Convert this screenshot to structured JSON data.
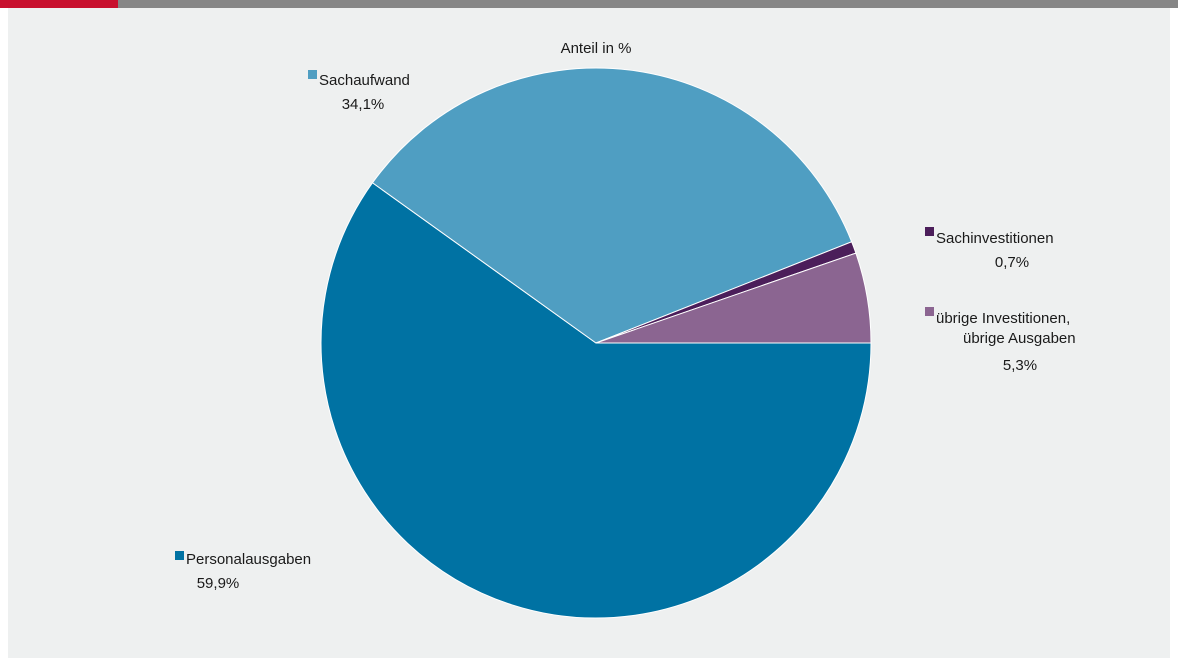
{
  "chart_data": {
    "type": "pie",
    "title": "Anteil in %",
    "slices": [
      {
        "name": "Personalausgaben",
        "value": 59.9,
        "value_label": "59,9%",
        "color": "#0072a3"
      },
      {
        "name": "Sachaufwand",
        "value": 34.1,
        "value_label": "34,1%",
        "color": "#4f9ec2"
      },
      {
        "name": "Sachinvestitionen",
        "value": 0.7,
        "value_label": "0,7%",
        "color": "#4b1e5a"
      },
      {
        "name": "übrige Investitionen, übrige Ausgaben",
        "name_lines": [
          "übrige Investitionen,",
          "übrige Ausgaben"
        ],
        "value": 5.3,
        "value_label": "5,3%",
        "color": "#8b6591"
      }
    ],
    "start_angle_deg": 0,
    "direction": "clockwise",
    "legend": "inline"
  },
  "colors": {
    "top_bar": "#868686",
    "top_bar_accent": "#c8102e",
    "panel_background": "#eef0f0"
  }
}
